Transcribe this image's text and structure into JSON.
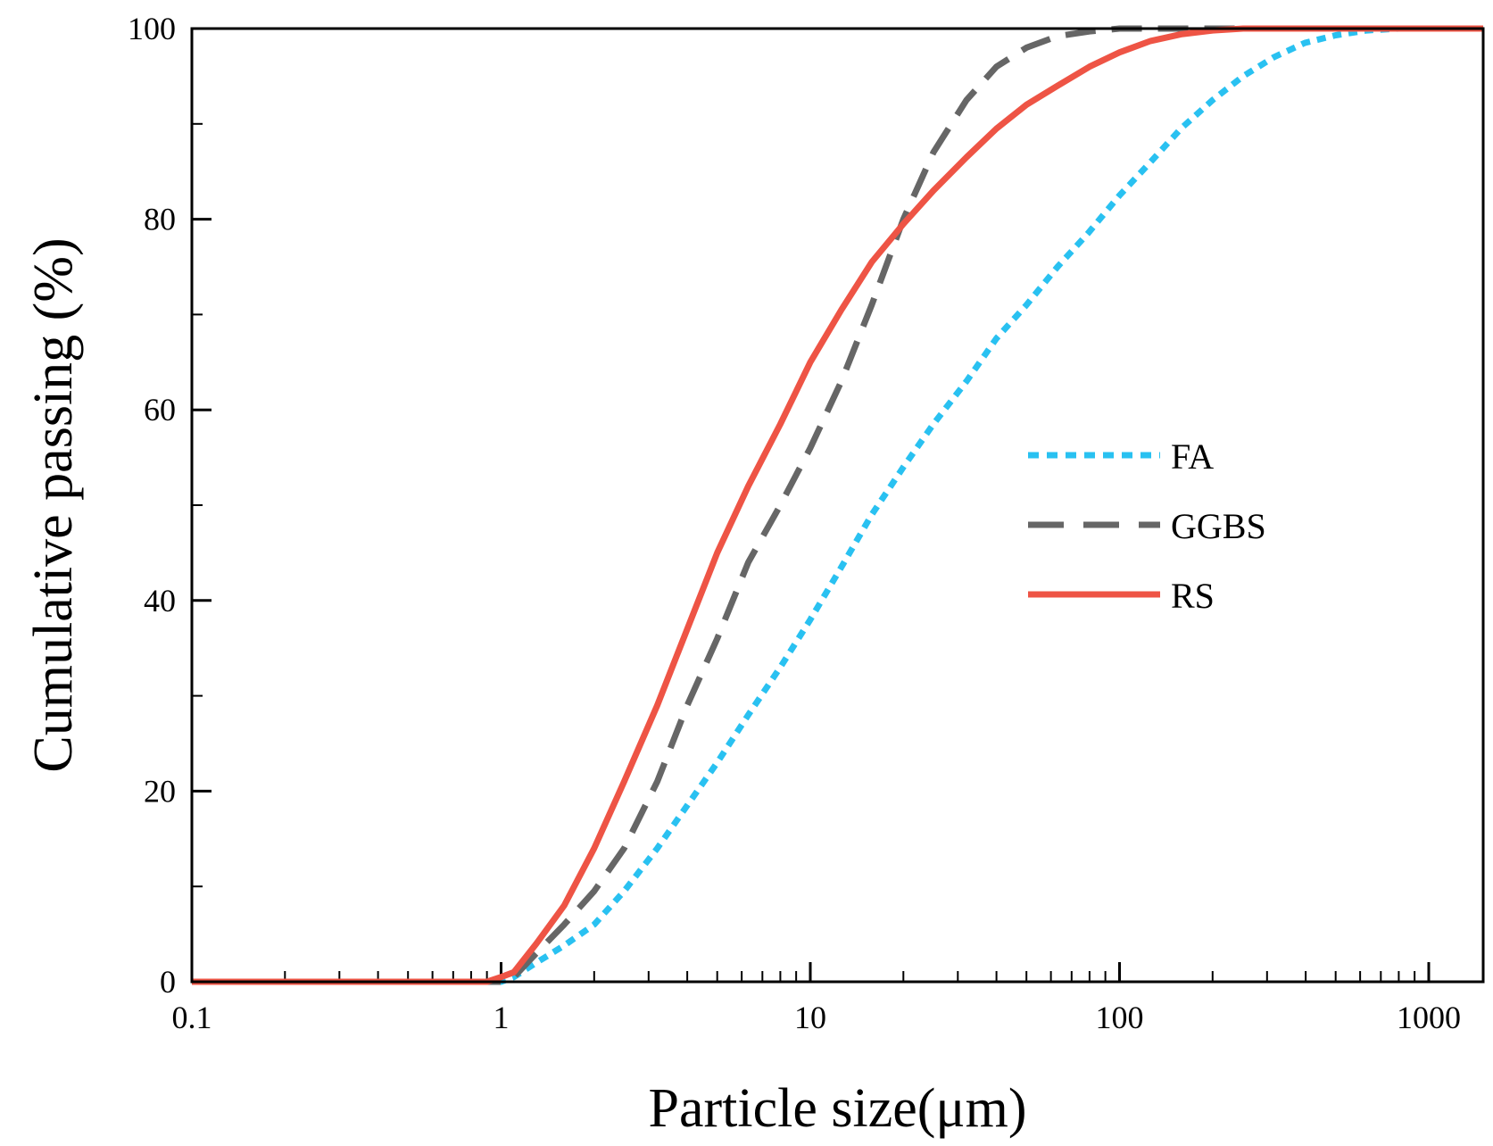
{
  "chart_data": {
    "type": "line",
    "title": "",
    "xlabel": "Particle size(μm)",
    "ylabel": "Cumulative passing (%)",
    "xscale": "log",
    "xlim": [
      0.1,
      1500
    ],
    "ylim": [
      0,
      100
    ],
    "xticks": [
      0.1,
      1,
      10,
      100,
      1000
    ],
    "xtick_labels": [
      "0.1",
      "1",
      "10",
      "100",
      "1000"
    ],
    "yticks": [
      0,
      20,
      40,
      60,
      80,
      100
    ],
    "ytick_labels": [
      "0",
      "20",
      "40",
      "60",
      "80",
      "100"
    ],
    "grid": false,
    "legend_position": "center-right",
    "series": [
      {
        "name": "FA",
        "color": "#29c1f1",
        "style": "dotted",
        "points": [
          [
            0.1,
            0
          ],
          [
            0.9,
            0
          ],
          [
            1.0,
            0
          ],
          [
            1.1,
            0.5
          ],
          [
            1.3,
            2
          ],
          [
            1.6,
            3.8
          ],
          [
            2.0,
            6
          ],
          [
            2.5,
            9.5
          ],
          [
            3.2,
            14
          ],
          [
            4.0,
            18.5
          ],
          [
            5.0,
            23
          ],
          [
            6.3,
            28
          ],
          [
            8.0,
            33
          ],
          [
            10,
            38
          ],
          [
            12.6,
            43.5
          ],
          [
            15.8,
            49
          ],
          [
            20,
            54
          ],
          [
            25,
            58.5
          ],
          [
            32,
            63
          ],
          [
            40,
            67.5
          ],
          [
            50,
            71
          ],
          [
            63,
            75
          ],
          [
            79,
            78.5
          ],
          [
            100,
            82.5
          ],
          [
            126,
            86
          ],
          [
            158,
            89.5
          ],
          [
            200,
            92.5
          ],
          [
            251,
            95
          ],
          [
            316,
            97
          ],
          [
            398,
            98.5
          ],
          [
            500,
            99.3
          ],
          [
            631,
            99.8
          ],
          [
            800,
            100
          ],
          [
            1500,
            100
          ]
        ]
      },
      {
        "name": "GGBS",
        "color": "#666666",
        "style": "dashed",
        "points": [
          [
            0.1,
            0
          ],
          [
            0.9,
            0
          ],
          [
            1.0,
            0
          ],
          [
            1.1,
            0.5
          ],
          [
            1.3,
            3
          ],
          [
            1.6,
            6
          ],
          [
            2.0,
            9.5
          ],
          [
            2.5,
            14
          ],
          [
            3.2,
            21
          ],
          [
            4.0,
            29
          ],
          [
            5.0,
            36
          ],
          [
            6.3,
            44
          ],
          [
            8.0,
            50
          ],
          [
            10,
            56
          ],
          [
            12.6,
            63
          ],
          [
            15.8,
            71
          ],
          [
            20,
            80
          ],
          [
            25,
            87
          ],
          [
            32,
            92.5
          ],
          [
            40,
            96
          ],
          [
            50,
            98
          ],
          [
            63,
            99.2
          ],
          [
            80,
            99.7
          ],
          [
            100,
            100
          ],
          [
            1500,
            100
          ]
        ]
      },
      {
        "name": "RS",
        "color": "#ee5445",
        "style": "solid",
        "points": [
          [
            0.1,
            0
          ],
          [
            0.9,
            0
          ],
          [
            1.0,
            0.5
          ],
          [
            1.1,
            1
          ],
          [
            1.3,
            4
          ],
          [
            1.6,
            8
          ],
          [
            2.0,
            14
          ],
          [
            2.5,
            21
          ],
          [
            3.2,
            29
          ],
          [
            4.0,
            37
          ],
          [
            5.0,
            45
          ],
          [
            6.3,
            52
          ],
          [
            8.0,
            58.5
          ],
          [
            10,
            65
          ],
          [
            12.6,
            70.5
          ],
          [
            15.8,
            75.5
          ],
          [
            20,
            79.5
          ],
          [
            25,
            83
          ],
          [
            32,
            86.5
          ],
          [
            40,
            89.5
          ],
          [
            50,
            92
          ],
          [
            63,
            94
          ],
          [
            80,
            96
          ],
          [
            100,
            97.5
          ],
          [
            126,
            98.7
          ],
          [
            158,
            99.4
          ],
          [
            200,
            99.8
          ],
          [
            251,
            100
          ],
          [
            1500,
            100
          ]
        ]
      }
    ]
  }
}
